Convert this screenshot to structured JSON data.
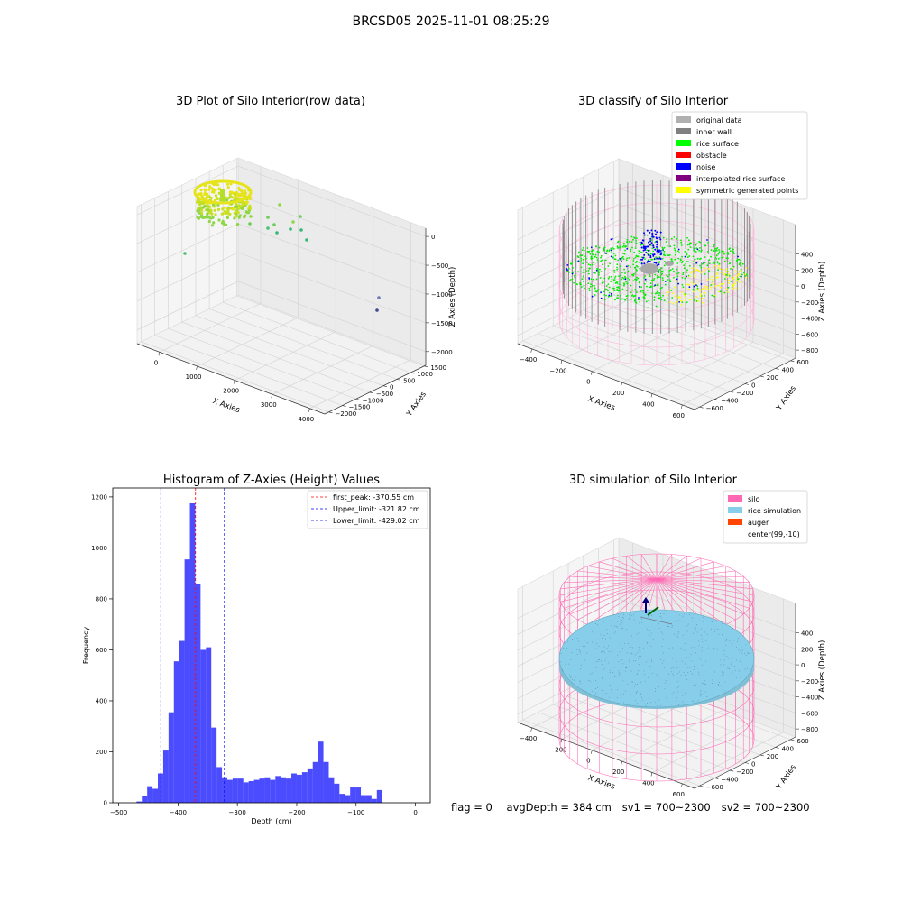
{
  "figure": {
    "suptitle": "BRCSD05 2025-11-01 08:25:29",
    "status": {
      "flag": "flag = 0",
      "avg_depth": "avgDepth = 384 cm",
      "sv1": "sv1 = 700~2300",
      "sv2": "sv2 = 700~2300"
    }
  },
  "chart_data": [
    {
      "type": "scatter",
      "projection": "3d",
      "title": "3D Plot of Silo Interior(row data)",
      "xlabel": "X Axies",
      "ylabel": "Y Axies",
      "zlabel": "Z Axies (Depth)",
      "x_ticks": [
        "0",
        "1000",
        "2000",
        "3000",
        "4000"
      ],
      "y_ticks": [
        "−2000",
        "−1500",
        "−1000",
        "−500",
        "0",
        "500",
        "1000",
        "1500"
      ],
      "z_ticks": [
        "−2000",
        "−1500",
        "−1000",
        "−500",
        "0"
      ],
      "colormap": "viridis",
      "grid": true,
      "description_points": [
        {
          "x": 0,
          "y": 0,
          "z": -380,
          "note": "dense silo ring"
        },
        {
          "x": 600,
          "y": 200,
          "z": -700
        },
        {
          "x": 900,
          "y": -200,
          "z": -800
        },
        {
          "x": 1200,
          "y": 300,
          "z": -650
        },
        {
          "x": 1500,
          "y": -300,
          "z": -900
        },
        {
          "x": -400,
          "y": -1200,
          "z": -1400
        },
        {
          "x": 3900,
          "y": 1200,
          "z": -1900
        },
        {
          "x": 3800,
          "y": 1000,
          "z": -2050
        }
      ]
    },
    {
      "type": "scatter",
      "projection": "3d",
      "title": "3D classify of Silo Interior",
      "xlabel": "X Axies",
      "ylabel": "Y Axies",
      "zlabel": "Z Axies (Depth)",
      "x_ticks": [
        "−400",
        "−200",
        "0",
        "200",
        "400",
        "600"
      ],
      "y_ticks": [
        "−600",
        "−400",
        "−200",
        "0",
        "200",
        "400",
        "600"
      ],
      "z_ticks": [
        "−800",
        "−600",
        "−400",
        "−200",
        "0",
        "200",
        "400"
      ],
      "legend": [
        {
          "label": "original data",
          "color": "#b0b0b0"
        },
        {
          "label": "inner wall",
          "color": "#808080"
        },
        {
          "label": "rice surface",
          "color": "#00ff00"
        },
        {
          "label": "obstacle",
          "color": "#ff0000"
        },
        {
          "label": "noise",
          "color": "#0000ff"
        },
        {
          "label": "interpolated rice surface",
          "color": "#800080"
        },
        {
          "label": "symmetric generated points",
          "color": "#ffff00"
        }
      ],
      "legend_loc": "upper right",
      "grid": true
    },
    {
      "type": "bar",
      "title": "Histogram of Z-Axies (Height) Values",
      "xlabel": "Depth (cm)",
      "ylabel": "Frequency",
      "xlim": [
        -510,
        25
      ],
      "ylim": [
        0,
        1235
      ],
      "x_ticks": [
        -500,
        -400,
        -300,
        -200,
        -100,
        0
      ],
      "x_tick_labels": [
        "−500",
        "−400",
        "−300",
        "−200",
        "−100",
        "0"
      ],
      "y_ticks": [
        0,
        200,
        400,
        600,
        800,
        1000,
        1200
      ],
      "bin_start": -470,
      "bin_width": 9,
      "values": [
        5,
        25,
        65,
        55,
        115,
        205,
        355,
        555,
        635,
        955,
        1175,
        860,
        600,
        610,
        295,
        140,
        100,
        90,
        95,
        95,
        80,
        85,
        90,
        95,
        100,
        90,
        105,
        100,
        95,
        115,
        110,
        120,
        135,
        160,
        240,
        160,
        100,
        75,
        35,
        30,
        60,
        60,
        30,
        30,
        15,
        50
      ],
      "bar_color": "#0000ff",
      "lines": [
        {
          "label": "first_peak: -370.55 cm",
          "x": -370.55,
          "color": "#ff0000"
        },
        {
          "label": "Upper_limit: -321.82 cm",
          "x": -321.82,
          "color": "#0000ff"
        },
        {
          "label": "Lower_limit: -429.02 cm",
          "x": -429.02,
          "color": "#0000ff"
        }
      ],
      "legend_loc": "upper right",
      "grid": false
    },
    {
      "type": "scatter",
      "projection": "3d",
      "title": "3D simulation of Silo Interior",
      "xlabel": "X Axies",
      "ylabel": "Y Axies",
      "zlabel": "Z Axies (Depth)",
      "x_ticks": [
        "−400",
        "−200",
        "0",
        "200",
        "400",
        "600"
      ],
      "y_ticks": [
        "−600",
        "−400",
        "−200",
        "0",
        "200",
        "400",
        "600"
      ],
      "z_ticks": [
        "−800",
        "−600",
        "−400",
        "−200",
        "0",
        "200",
        "400"
      ],
      "legend": [
        {
          "label": "silo",
          "color": "#ff69b4"
        },
        {
          "label": "rice simulation",
          "color": "#87ceeb"
        },
        {
          "label": "auger",
          "color": "#ff4500"
        },
        {
          "label": "center(99,-10)",
          "color": "none"
        }
      ],
      "legend_loc": "upper right",
      "grid": true
    }
  ]
}
